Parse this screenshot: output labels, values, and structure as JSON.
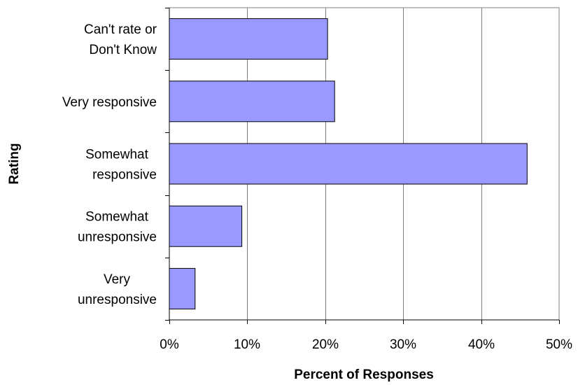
{
  "chart_data": {
    "type": "bar",
    "orientation": "horizontal",
    "categories": [
      [
        "Can't rate or",
        "Don't Know"
      ],
      [
        "Very responsive"
      ],
      [
        "Somewhat",
        "responsive"
      ],
      [
        "Somewhat",
        "unresponsive"
      ],
      [
        "Very",
        "unresponsive"
      ]
    ],
    "values": [
      20.3,
      21.2,
      45.9,
      9.3,
      3.3
    ],
    "xlabel": "Percent of Responses",
    "ylabel": "Rating",
    "xlim": [
      0,
      50
    ],
    "xticks": [
      "0%",
      "10%",
      "20%",
      "30%",
      "40%",
      "50%"
    ],
    "grid": "vertical",
    "bar_color": "#9999ff",
    "legend": "none"
  }
}
